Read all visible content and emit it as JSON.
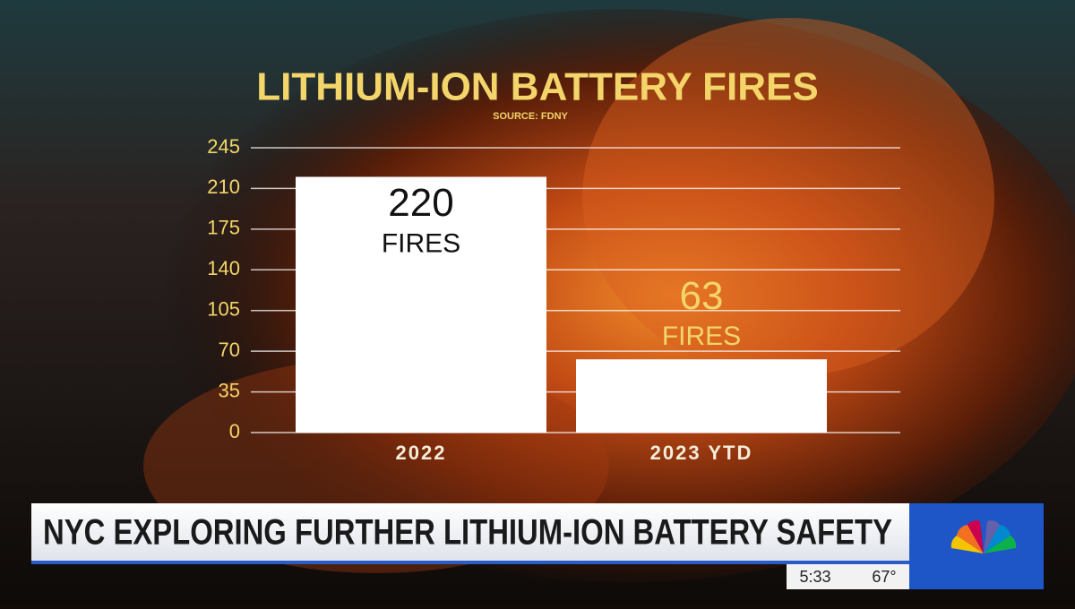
{
  "chart_data": {
    "type": "bar",
    "title": "LITHIUM-ION BATTERY FIRES",
    "subtitle": "SOURCE: FDNY",
    "categories": [
      "2022",
      "2023 YTD"
    ],
    "values": [
      220,
      63
    ],
    "value_unit_label": "FIRES",
    "color": "#ffffff",
    "ylim": [
      0,
      245
    ],
    "yticks": [
      0,
      35,
      70,
      105,
      140,
      175,
      210,
      245
    ],
    "grid": true
  },
  "banner": {
    "headline": "NYC EXPLORING FURTHER LITHIUM-ION BATTERY SAFETY",
    "time": "5:33",
    "temperature": "67°"
  }
}
